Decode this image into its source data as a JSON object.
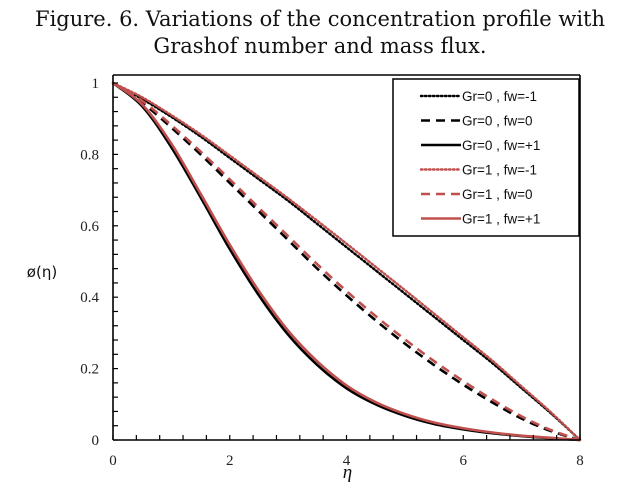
{
  "chart_data": {
    "type": "line",
    "title_lines": [
      "Figure. 6. Variations of the concentration profile with",
      "Grashof number and mass flux."
    ],
    "xlabel": "η",
    "ylabel": "ø(η)",
    "xlim": [
      0,
      8
    ],
    "ylim": [
      0,
      1
    ],
    "xticks": [
      0,
      2,
      4,
      6,
      8
    ],
    "xtick_labels": [
      "0",
      "2",
      "4",
      "6",
      "8"
    ],
    "yticks": [
      0,
      0.2,
      0.4,
      0.6,
      0.8,
      1
    ],
    "ytick_labels": [
      "0",
      "0.2",
      "0.4",
      "0.6",
      "0.8",
      "1"
    ],
    "grid": false,
    "legend_position": "top-right",
    "x": [
      0,
      0.5,
      1,
      1.5,
      2,
      2.5,
      3,
      3.5,
      4,
      4.5,
      5,
      5.5,
      6,
      6.5,
      7,
      7.5,
      8
    ],
    "series": [
      {
        "name": "Gr=0 , fw=-1",
        "color": "#000000",
        "style": "dotted",
        "values": [
          1.0,
          0.955,
          0.905,
          0.85,
          0.79,
          0.73,
          0.67,
          0.605,
          0.54,
          0.475,
          0.41,
          0.345,
          0.28,
          0.215,
          0.145,
          0.075,
          0.0
        ]
      },
      {
        "name": "Gr=0 , fw=0",
        "color": "#000000",
        "style": "dashed",
        "values": [
          1.0,
          0.945,
          0.875,
          0.8,
          0.72,
          0.64,
          0.56,
          0.48,
          0.405,
          0.335,
          0.27,
          0.21,
          0.155,
          0.105,
          0.06,
          0.025,
          0.0
        ]
      },
      {
        "name": "Gr=0 , fw=+1",
        "color": "#000000",
        "style": "solid",
        "values": [
          1.0,
          0.935,
          0.82,
          0.68,
          0.535,
          0.405,
          0.295,
          0.21,
          0.145,
          0.1,
          0.068,
          0.045,
          0.03,
          0.019,
          0.011,
          0.005,
          0.0
        ]
      },
      {
        "name": "Gr=1 , fw=-1",
        "color": "#c0504d",
        "style": "dotted",
        "values": [
          1.0,
          0.96,
          0.91,
          0.856,
          0.797,
          0.737,
          0.677,
          0.614,
          0.55,
          0.485,
          0.42,
          0.354,
          0.288,
          0.222,
          0.15,
          0.078,
          0.0
        ]
      },
      {
        "name": "Gr=1 , fw=0",
        "color": "#c0504d",
        "style": "dashed",
        "values": [
          1.0,
          0.95,
          0.882,
          0.808,
          0.73,
          0.65,
          0.571,
          0.492,
          0.417,
          0.347,
          0.282,
          0.221,
          0.165,
          0.113,
          0.066,
          0.028,
          0.0
        ]
      },
      {
        "name": "Gr=1 , fw=+1",
        "color": "#c0504d",
        "style": "solid",
        "values": [
          1.0,
          0.94,
          0.83,
          0.69,
          0.547,
          0.417,
          0.306,
          0.22,
          0.153,
          0.106,
          0.073,
          0.049,
          0.033,
          0.021,
          0.012,
          0.006,
          0.0
        ]
      }
    ]
  }
}
